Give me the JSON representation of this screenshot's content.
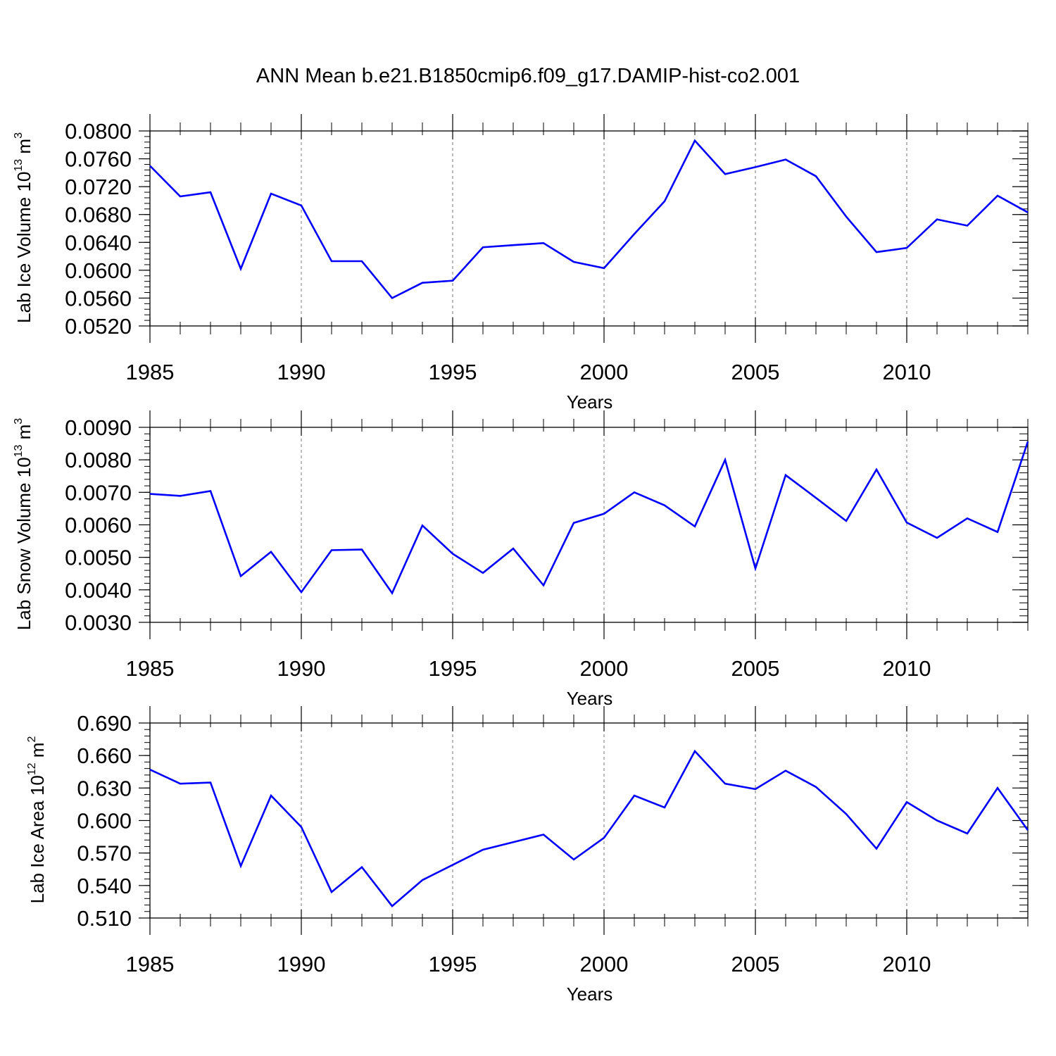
{
  "title": "ANN Mean b.e21.B1850cmip6.f09_g17.DAMIP-hist-co2.001",
  "line_color": "#0000ff",
  "chart_data": [
    {
      "type": "line",
      "ylabel_main": "Lab Ice Volume 10",
      "ylabel_sup": "13",
      "ylabel_unit": " m",
      "ylabel_unit_sup": "3",
      "xlabel": "Years",
      "xlim": [
        1985,
        2014
      ],
      "ylim": [
        0.052,
        0.08
      ],
      "yticks": [
        0.052,
        0.056,
        0.06,
        0.064,
        0.068,
        0.072,
        0.076,
        0.08
      ],
      "ytick_labels": [
        "0.0520",
        "0.0560",
        "0.0600",
        "0.0640",
        "0.0680",
        "0.0720",
        "0.0760",
        "0.0800"
      ],
      "yminor_step": 0.0008,
      "xticks": [
        1985,
        1990,
        1995,
        2000,
        2005,
        2010
      ],
      "xtick_labels": [
        "1985",
        "1990",
        "1995",
        "2000",
        "2005",
        "2010"
      ],
      "grid_x": [
        1990,
        1995,
        2000,
        2005,
        2010
      ],
      "x": [
        1985,
        1986,
        1987,
        1988,
        1989,
        1990,
        1991,
        1992,
        1993,
        1994,
        1995,
        1996,
        1997,
        1998,
        1999,
        2000,
        2001,
        2002,
        2003,
        2004,
        2005,
        2006,
        2007,
        2008,
        2009,
        2010,
        2011,
        2012,
        2013,
        2014
      ],
      "y": [
        0.075,
        0.0706,
        0.0712,
        0.0602,
        0.071,
        0.0693,
        0.0613,
        0.0613,
        0.056,
        0.0582,
        0.0585,
        0.0633,
        0.0636,
        0.0639,
        0.0612,
        0.0603,
        0.0652,
        0.0699,
        0.0786,
        0.0738,
        0.0748,
        0.0759,
        0.0735,
        0.0677,
        0.0626,
        0.0632,
        0.0673,
        0.0664,
        0.0707,
        0.0683
      ]
    },
    {
      "type": "line",
      "ylabel_main": "Lab Snow Volume 10",
      "ylabel_sup": "13",
      "ylabel_unit": " m",
      "ylabel_unit_sup": "3",
      "xlabel": "Years",
      "xlim": [
        1985,
        2014
      ],
      "ylim": [
        0.003,
        0.009
      ],
      "yticks": [
        0.003,
        0.004,
        0.005,
        0.006,
        0.007,
        0.008,
        0.009
      ],
      "ytick_labels": [
        "0.0030",
        "0.0040",
        "0.0050",
        "0.0060",
        "0.0070",
        "0.0080",
        "0.0090"
      ],
      "yminor_step": 0.0002,
      "xticks": [
        1985,
        1990,
        1995,
        2000,
        2005,
        2010
      ],
      "xtick_labels": [
        "1985",
        "1990",
        "1995",
        "2000",
        "2005",
        "2010"
      ],
      "grid_x": [
        1990,
        1995,
        2000,
        2005,
        2010
      ],
      "x": [
        1985,
        1986,
        1987,
        1988,
        1989,
        1990,
        1991,
        1992,
        1993,
        1994,
        1995,
        1996,
        1997,
        1998,
        1999,
        2000,
        2001,
        2002,
        2003,
        2004,
        2005,
        2006,
        2007,
        2008,
        2009,
        2010,
        2011,
        2012,
        2013,
        2014
      ],
      "y": [
        0.00695,
        0.00689,
        0.00704,
        0.00442,
        0.00517,
        0.00393,
        0.00522,
        0.00524,
        0.0039,
        0.00598,
        0.00511,
        0.00452,
        0.00527,
        0.00414,
        0.00606,
        0.00634,
        0.007,
        0.0066,
        0.00595,
        0.008,
        0.00466,
        0.00753,
        0.00683,
        0.00612,
        0.0077,
        0.00607,
        0.0056,
        0.0062,
        0.00578,
        0.00856
      ]
    },
    {
      "type": "line",
      "ylabel_main": "Lab Ice Area 10",
      "ylabel_sup": "12",
      "ylabel_unit": " m",
      "ylabel_unit_sup": "2",
      "xlabel": "Years",
      "xlim": [
        1985,
        2014
      ],
      "ylim": [
        0.51,
        0.69
      ],
      "yticks": [
        0.51,
        0.54,
        0.57,
        0.6,
        0.63,
        0.66,
        0.69
      ],
      "ytick_labels": [
        "0.510",
        "0.540",
        "0.570",
        "0.600",
        "0.630",
        "0.660",
        "0.690"
      ],
      "yminor_step": 0.006,
      "xticks": [
        1985,
        1990,
        1995,
        2000,
        2005,
        2010
      ],
      "xtick_labels": [
        "1985",
        "1990",
        "1995",
        "2000",
        "2005",
        "2010"
      ],
      "grid_x": [
        1990,
        1995,
        2000,
        2005,
        2010
      ],
      "x": [
        1985,
        1986,
        1987,
        1988,
        1989,
        1990,
        1991,
        1992,
        1993,
        1994,
        1995,
        1996,
        1997,
        1998,
        1999,
        2000,
        2001,
        2002,
        2003,
        2004,
        2005,
        2006,
        2007,
        2008,
        2009,
        2010,
        2011,
        2012,
        2013,
        2014
      ],
      "y": [
        0.647,
        0.634,
        0.635,
        0.558,
        0.623,
        0.594,
        0.534,
        0.557,
        0.521,
        0.545,
        0.559,
        0.573,
        0.58,
        0.587,
        0.564,
        0.584,
        0.623,
        0.612,
        0.664,
        0.634,
        0.629,
        0.646,
        0.631,
        0.606,
        0.574,
        0.617,
        0.6,
        0.588,
        0.63,
        0.591
      ]
    }
  ]
}
